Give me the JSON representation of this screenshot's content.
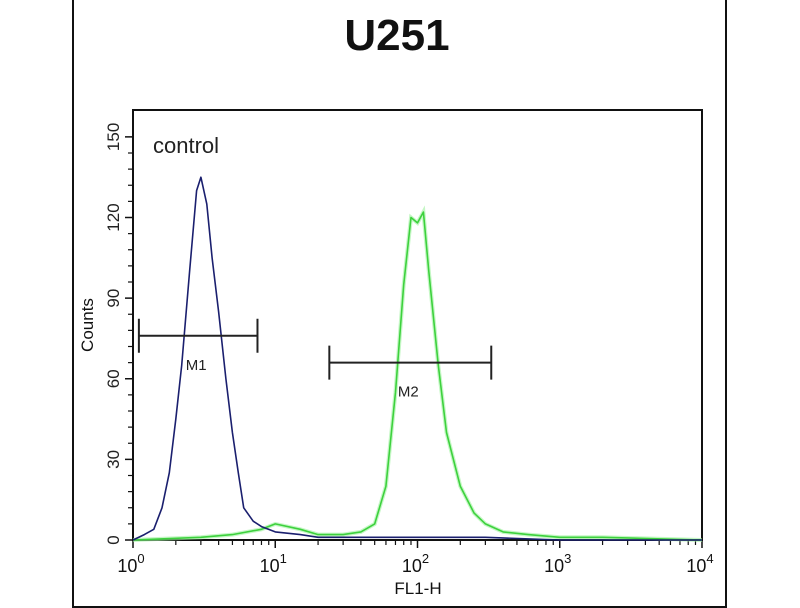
{
  "chart_data": {
    "type": "line",
    "title": "U251",
    "xlabel": "FL1-H",
    "ylabel": "Counts",
    "x_scale": "log",
    "xlim": [
      1,
      10000
    ],
    "ylim": [
      0,
      160
    ],
    "grid": false,
    "x_ticks": [
      {
        "value": 1,
        "base": "10",
        "exp": "0"
      },
      {
        "value": 10,
        "base": "10",
        "exp": "1"
      },
      {
        "value": 100,
        "base": "10",
        "exp": "2"
      },
      {
        "value": 1000,
        "base": "10",
        "exp": "3"
      },
      {
        "value": 10000,
        "base": "10",
        "exp": "4"
      }
    ],
    "y_ticks": [
      0,
      30,
      60,
      90,
      120,
      150
    ],
    "annotations": [
      {
        "text": "control"
      }
    ],
    "series": [
      {
        "color": "#1a1f6e",
        "x": [
          1.0,
          1.2,
          1.4,
          1.6,
          1.8,
          2.0,
          2.2,
          2.5,
          2.8,
          3.0,
          3.3,
          3.6,
          4.0,
          4.5,
          5.0,
          5.5,
          6.0,
          7,
          8,
          10,
          15,
          20,
          50,
          100,
          300,
          1000,
          10000
        ],
        "y": [
          0,
          2,
          4,
          12,
          25,
          45,
          65,
          100,
          130,
          135,
          125,
          105,
          85,
          60,
          40,
          25,
          12,
          7,
          5,
          3,
          2,
          1,
          1,
          1,
          1,
          0,
          0
        ]
      },
      {
        "color": "#3dd13d",
        "x": [
          1,
          3,
          5,
          8,
          10,
          15,
          20,
          30,
          40,
          50,
          60,
          70,
          80,
          90,
          100,
          110,
          120,
          140,
          160,
          200,
          250,
          300,
          400,
          600,
          1000,
          2000,
          10000
        ],
        "y": [
          0,
          1,
          2,
          4,
          6,
          4,
          2,
          2,
          3,
          6,
          20,
          55,
          95,
          120,
          118,
          122,
          100,
          65,
          40,
          20,
          10,
          6,
          3,
          2,
          1,
          1,
          0
        ]
      }
    ],
    "markers": [
      {
        "label": "M1",
        "x_start": 1.1,
        "x_end": 7.5,
        "y": 76
      },
      {
        "label": "M2",
        "x_start": 24,
        "x_end": 330,
        "y": 66
      }
    ]
  }
}
